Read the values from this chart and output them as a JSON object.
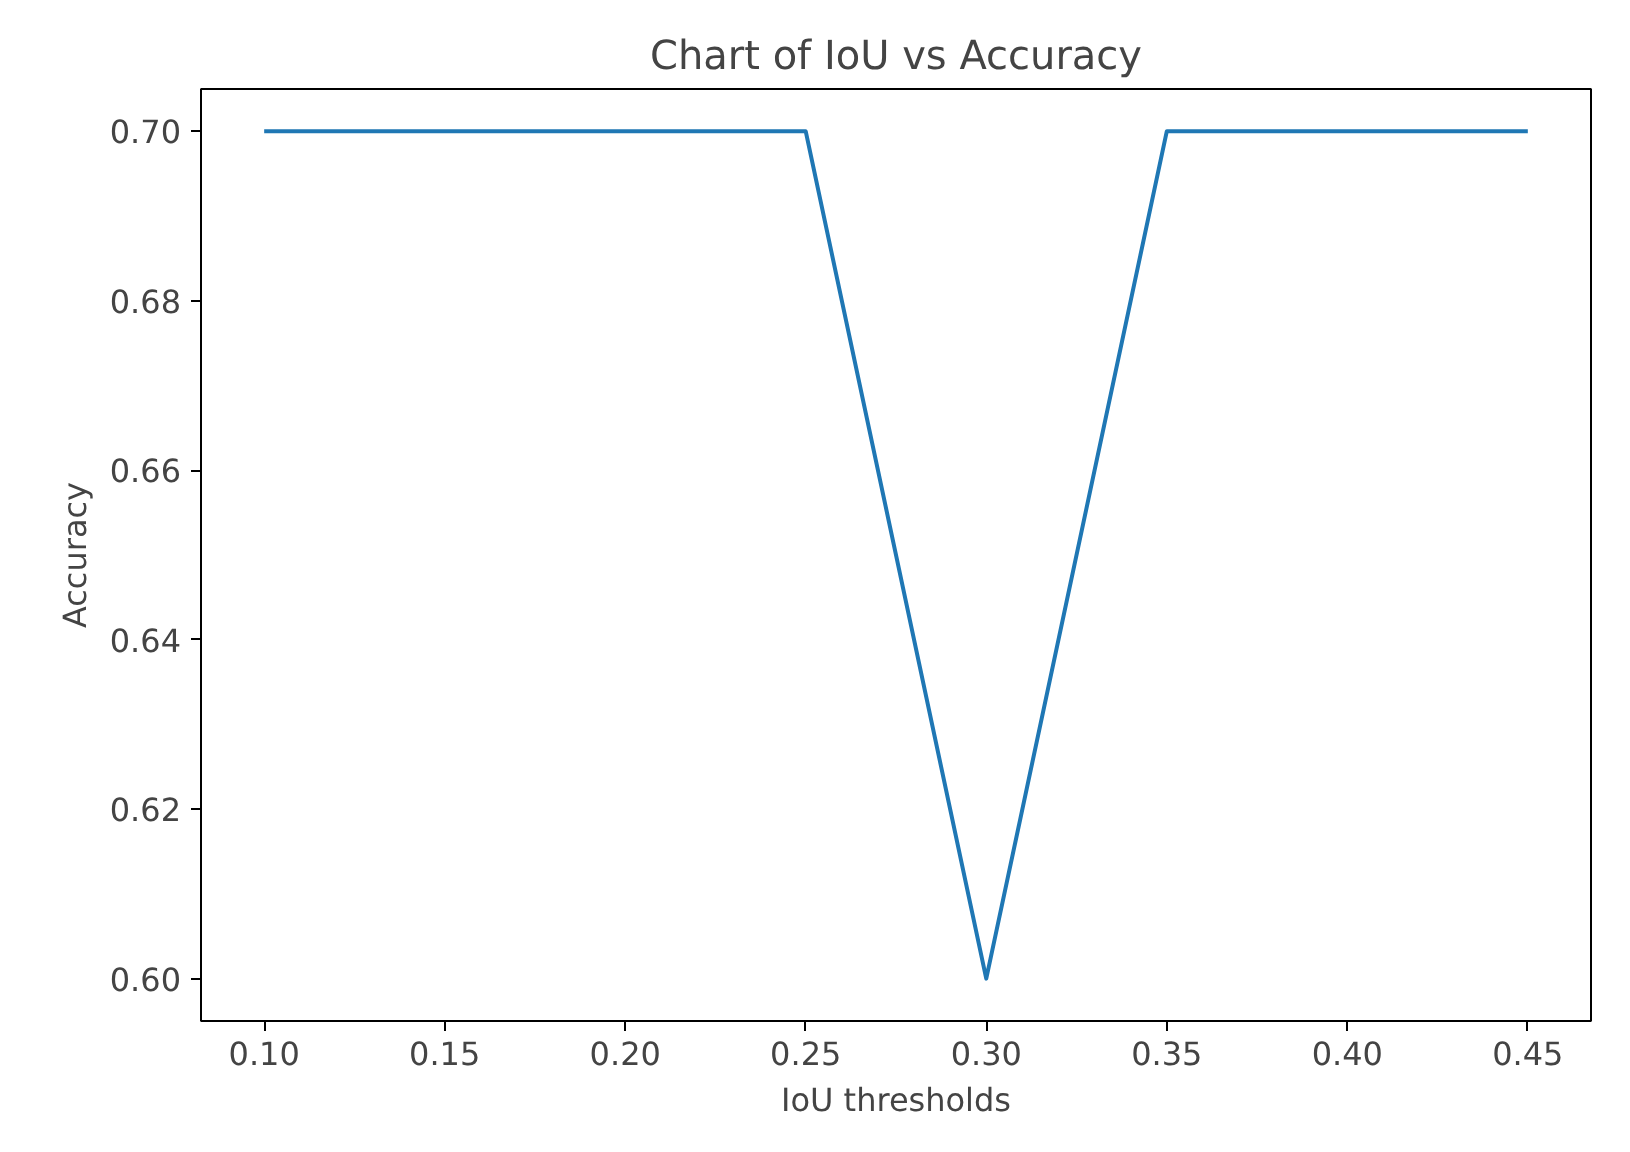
{
  "chart_data": {
    "type": "line",
    "title": "Chart of IoU vs Accuracy",
    "xlabel": "IoU thresholds",
    "ylabel": "Accuracy",
    "x": [
      0.1,
      0.15,
      0.2,
      0.25,
      0.3,
      0.35,
      0.4,
      0.45
    ],
    "series": [
      {
        "color": "#1f77b4",
        "values": [
          0.7,
          0.7,
          0.7,
          0.7,
          0.6,
          0.7,
          0.7,
          0.7
        ]
      }
    ],
    "xlim": [
      0.0825,
      0.4675
    ],
    "ylim": [
      0.595,
      0.705
    ],
    "xticks": [
      {
        "value": 0.1,
        "label": "0.10"
      },
      {
        "value": 0.15,
        "label": "0.15"
      },
      {
        "value": 0.2,
        "label": "0.20"
      },
      {
        "value": 0.25,
        "label": "0.25"
      },
      {
        "value": 0.3,
        "label": "0.30"
      },
      {
        "value": 0.35,
        "label": "0.35"
      },
      {
        "value": 0.4,
        "label": "0.40"
      },
      {
        "value": 0.45,
        "label": "0.45"
      }
    ],
    "yticks": [
      {
        "value": 0.6,
        "label": "0.60"
      },
      {
        "value": 0.62,
        "label": "0.62"
      },
      {
        "value": 0.64,
        "label": "0.64"
      },
      {
        "value": 0.66,
        "label": "0.66"
      },
      {
        "value": 0.68,
        "label": "0.68"
      },
      {
        "value": 0.7,
        "label": "0.70"
      }
    ],
    "grid": false,
    "line_style": "solid",
    "marker": "none"
  }
}
